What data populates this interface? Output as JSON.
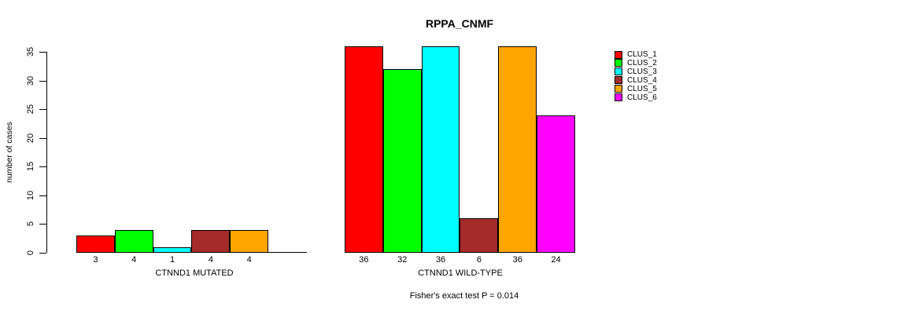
{
  "chart_data": {
    "type": "bar",
    "title": "RPPA_CNMF",
    "ylabel": "number of cases",
    "yticks": [
      0,
      5,
      10,
      15,
      20,
      25,
      30,
      35
    ],
    "ylim": [
      0,
      36
    ],
    "grid": false,
    "legend_position": "top-right",
    "series_names": [
      "CLUS_1",
      "CLUS_2",
      "CLUS_3",
      "CLUS_4",
      "CLUS_5",
      "CLUS_6"
    ],
    "series_colors": [
      "#FF0000",
      "#00FF00",
      "#00FFFF",
      "#A52A2A",
      "#FFA500",
      "#FF00FF"
    ],
    "groups": [
      {
        "label": "CTNND1 MUTATED",
        "values": [
          3,
          4,
          1,
          4,
          4,
          0
        ],
        "bar_labels": [
          "3",
          "4",
          "1",
          "4",
          "4",
          ""
        ]
      },
      {
        "label": "CTNND1 WILD-TYPE",
        "values": [
          36,
          32,
          36,
          6,
          36,
          24
        ],
        "bar_labels": [
          "36",
          "32",
          "36",
          "6",
          "36",
          "24"
        ]
      }
    ],
    "annotation": "Fisher's exact test P = 0.014"
  },
  "legend": {
    "items": [
      {
        "label": "CLUS_1",
        "color": "#FF0000"
      },
      {
        "label": "CLUS_2",
        "color": "#00FF00"
      },
      {
        "label": "CLUS_3",
        "color": "#00FFFF"
      },
      {
        "label": "CLUS_4",
        "color": "#A52A2A"
      },
      {
        "label": "CLUS_5",
        "color": "#FFA500"
      },
      {
        "label": "CLUS_6",
        "color": "#FF00FF"
      }
    ]
  }
}
